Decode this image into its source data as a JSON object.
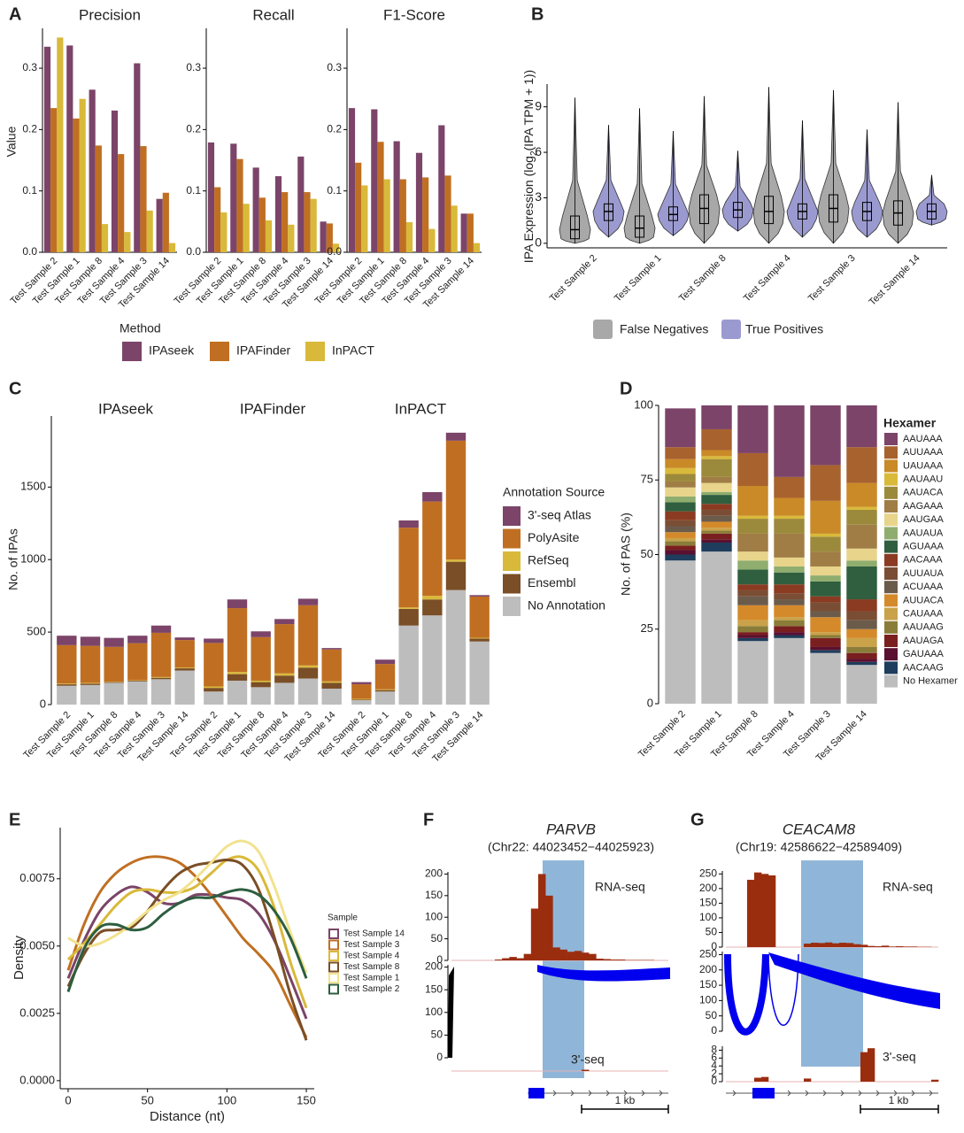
{
  "chart_data": [
    {
      "panel": "A",
      "type": "grouped-bar",
      "ylabel": "Value",
      "legend_title": "Method",
      "categories": [
        "Test Sample 2",
        "Test Sample 1",
        "Test Sample 8",
        "Test Sample 4",
        "Test Sample 3",
        "Test Sample 14"
      ],
      "series": [
        {
          "name": "IPAseek",
          "color": "#7b4468"
        },
        {
          "name": "IPAFinder",
          "color": "#c06f22"
        },
        {
          "name": "InPACT",
          "color": "#d9b93a"
        }
      ],
      "facets": [
        {
          "title": "Precision",
          "values": [
            [
              0.335,
              0.337,
              0.265,
              0.231,
              0.308,
              0.087
            ],
            [
              0.235,
              0.218,
              0.174,
              0.16,
              0.173,
              0.097
            ],
            [
              0.35,
              0.25,
              0.046,
              0.033,
              0.068,
              0.015
            ]
          ]
        },
        {
          "title": "Recall",
          "values": [
            [
              0.179,
              0.177,
              0.138,
              0.124,
              0.156,
              0.05
            ],
            [
              0.106,
              0.152,
              0.089,
              0.098,
              0.098,
              0.047
            ],
            [
              0.065,
              0.079,
              0.052,
              0.045,
              0.087,
              0.014
            ]
          ]
        },
        {
          "title": "F1-Score",
          "values": [
            [
              0.235,
              0.233,
              0.181,
              0.162,
              0.207,
              0.063
            ],
            [
              0.146,
              0.18,
              0.119,
              0.122,
              0.125,
              0.063
            ],
            [
              0.109,
              0.119,
              0.049,
              0.038,
              0.076,
              0.015
            ]
          ]
        }
      ],
      "ylim": [
        0,
        0.365
      ],
      "yticks": [
        {
          "value": 0,
          "label": "0.0"
        },
        0.1,
        0.2,
        0.3
      ]
    },
    {
      "panel": "B",
      "type": "violin",
      "ylabel_parts": [
        "IPA Expression (log",
        "2",
        "(IPA TPM + 1))"
      ],
      "categories": [
        "Test Sample 2",
        "Test Sample 1",
        "Test Sample 8",
        "Test Sample 4",
        "Test Sample 3",
        "Test Sample 14"
      ],
      "series": [
        {
          "name": "False Negatives",
          "color": "#a8a8a8",
          "min": [
            0,
            0,
            0,
            0,
            0,
            0
          ],
          "q1": [
            0.3,
            0.4,
            1.3,
            1.3,
            1.4,
            1.2
          ],
          "median": [
            0.9,
            1.0,
            2.3,
            2.1,
            2.3,
            2.0
          ],
          "q3": [
            1.8,
            1.8,
            3.2,
            3.1,
            3.2,
            2.8
          ],
          "max": [
            9.6,
            8.9,
            9.7,
            10.3,
            10.1,
            9.3
          ]
        },
        {
          "name": "True Positives",
          "color": "#9b9ad0",
          "min": [
            0.4,
            0.5,
            0.8,
            0.4,
            0.4,
            1.2
          ],
          "q1": [
            1.5,
            1.5,
            1.7,
            1.6,
            1.5,
            1.6
          ],
          "median": [
            2.1,
            1.9,
            2.2,
            2.1,
            2.1,
            2.1
          ],
          "q3": [
            2.6,
            2.4,
            2.7,
            2.6,
            2.7,
            2.6
          ],
          "max": [
            7.8,
            7.4,
            6.1,
            8.1,
            7.5,
            4.5
          ]
        }
      ],
      "ylim": [
        -0.3,
        10.5
      ],
      "yticks": [
        0,
        3,
        6,
        9
      ]
    },
    {
      "panel": "C",
      "type": "stacked-bar",
      "ylabel": "No. of IPAs",
      "legend_title": "Annotation Source",
      "categories": [
        "Test Sample 2",
        "Test Sample 1",
        "Test Sample 8",
        "Test Sample 4",
        "Test Sample 3",
        "Test Sample 14"
      ],
      "series": [
        {
          "name": "3'-seq Atlas",
          "color": "#7b4468"
        },
        {
          "name": "PolyAsite",
          "color": "#c06f22"
        },
        {
          "name": "RefSeq",
          "color": "#d9b93a"
        },
        {
          "name": "Ensembl",
          "color": "#7a4e26"
        },
        {
          "name": "No Annotation",
          "color": "#bdbdbd"
        }
      ],
      "facets": [
        {
          "title": "IPAseek",
          "values": [
            [
              65,
              63,
              62,
              52,
              50,
              18
            ],
            [
              265,
              255,
              240,
              255,
              305,
              190
            ],
            [
              5,
              5,
              3,
              3,
              5,
              5
            ],
            [
              10,
              10,
              5,
              5,
              10,
              15
            ],
            [
              130,
              135,
              150,
              160,
              175,
              235
            ]
          ]
        },
        {
          "title": "IPAFinder",
          "values": [
            [
              30,
              60,
              40,
              35,
              45,
              10
            ],
            [
              300,
              440,
              300,
              340,
              415,
              220
            ],
            [
              10,
              15,
              10,
              15,
              15,
              10
            ],
            [
              25,
              45,
              35,
              50,
              75,
              40
            ],
            [
              90,
              165,
              120,
              150,
              180,
              110
            ]
          ]
        },
        {
          "title": "InPACT",
          "values": [
            [
              15,
              30,
              50,
              65,
              55,
              10
            ],
            [
              100,
              175,
              550,
              650,
              820,
              285
            ],
            [
              5,
              5,
              10,
              25,
              15,
              5
            ],
            [
              5,
              10,
              115,
              110,
              195,
              20
            ],
            [
              30,
              90,
              545,
              615,
              790,
              435
            ]
          ]
        }
      ],
      "ylim": [
        0,
        1990
      ],
      "yticks": [
        0,
        500,
        1000,
        1500
      ]
    },
    {
      "panel": "D",
      "type": "stacked-bar",
      "ylabel": "No. of PAS (%)",
      "legend_title": "Hexamer",
      "categories": [
        "Test Sample 2",
        "Test Sample 1",
        "Test Sample 8",
        "Test Sample 4",
        "Test Sample 3",
        "Test Sample 14"
      ],
      "series": [
        {
          "name": "AAUAAA",
          "color": "#7b4468",
          "values": [
            13,
            8,
            16,
            24,
            20,
            14
          ]
        },
        {
          "name": "AUUAAA",
          "color": "#a8622e",
          "values": [
            4,
            7,
            11,
            7,
            12,
            12
          ]
        },
        {
          "name": "UAUAAA",
          "color": "#c98a27",
          "values": [
            3,
            2,
            10,
            6,
            11,
            8
          ]
        },
        {
          "name": "AAUAAU",
          "color": "#d9b93a",
          "values": [
            2,
            1,
            1,
            1,
            1,
            1
          ]
        },
        {
          "name": "AAUACA",
          "color": "#9c8a3c",
          "values": [
            2.5,
            6,
            5,
            5,
            5,
            5
          ]
        },
        {
          "name": "AAGAAA",
          "color": "#a07d45",
          "values": [
            2,
            2,
            6,
            8,
            5,
            8
          ]
        },
        {
          "name": "AAUGAA",
          "color": "#e8d48a",
          "values": [
            3,
            3,
            3,
            3,
            3,
            4
          ]
        },
        {
          "name": "AAUAUA",
          "color": "#8fad6e",
          "values": [
            2,
            1,
            3,
            2,
            2,
            2
          ]
        },
        {
          "name": "AGUAAA",
          "color": "#2f5f3e",
          "values": [
            3,
            3,
            5,
            4,
            5,
            11
          ]
        },
        {
          "name": "AACAAA",
          "color": "#8a3b22",
          "values": [
            3,
            2,
            2,
            3,
            2,
            4
          ]
        },
        {
          "name": "AUUAUA",
          "color": "#7a4e34",
          "values": [
            2,
            2,
            2,
            2,
            3,
            3
          ]
        },
        {
          "name": "ACUAAA",
          "color": "#6b5b4b",
          "values": [
            2,
            2,
            3,
            2,
            2,
            3
          ]
        },
        {
          "name": "AUUACA",
          "color": "#d48a2a",
          "values": [
            2,
            2,
            5,
            4,
            5,
            3
          ]
        },
        {
          "name": "CAUAAA",
          "color": "#c9a24a",
          "values": [
            1,
            1,
            2,
            1,
            1,
            3
          ]
        },
        {
          "name": "AAUAAG",
          "color": "#8a7d3a",
          "values": [
            1.5,
            1,
            2,
            2,
            1,
            2
          ]
        },
        {
          "name": "AAUAGA",
          "color": "#7a1f1f",
          "values": [
            1.5,
            2,
            1,
            2,
            3,
            2
          ]
        },
        {
          "name": "GAUAAA",
          "color": "#5a1030",
          "values": [
            1.5,
            1,
            1,
            1,
            1,
            1
          ]
        },
        {
          "name": "AACAAG",
          "color": "#1f3d5c",
          "values": [
            2,
            3,
            1,
            1,
            1,
            1
          ]
        },
        {
          "name": "No Hexamer",
          "color": "#bdbdbd",
          "values": [
            48,
            51,
            21,
            22,
            17,
            13
          ]
        }
      ],
      "ylim": [
        0,
        100
      ],
      "yticks": [
        0,
        25,
        50,
        75,
        100
      ]
    },
    {
      "panel": "E",
      "type": "line",
      "xlabel": "Distance (nt)",
      "ylabel": "Density",
      "legend_title": "Sample",
      "x": [
        0,
        10,
        20,
        30,
        40,
        50,
        60,
        70,
        80,
        90,
        100,
        110,
        120,
        130,
        140,
        150
      ],
      "series": [
        {
          "name": "Test Sample 14",
          "color": "#7b4468",
          "values": [
            0.0038,
            0.0052,
            0.0063,
            0.0069,
            0.0072,
            0.007,
            0.0066,
            0.0066,
            0.0069,
            0.0069,
            0.0068,
            0.0067,
            0.0062,
            0.0052,
            0.0038,
            0.0023
          ]
        },
        {
          "name": "Test Sample 3",
          "color": "#c06f22",
          "values": [
            0.0041,
            0.0058,
            0.007,
            0.0077,
            0.0081,
            0.0083,
            0.0083,
            0.0081,
            0.0076,
            0.0069,
            0.0061,
            0.0053,
            0.0047,
            0.004,
            0.0028,
            0.0016
          ]
        },
        {
          "name": "Test Sample 4",
          "color": "#d9b93a",
          "values": [
            0.0045,
            0.0051,
            0.0058,
            0.0065,
            0.007,
            0.0071,
            0.007,
            0.007,
            0.0072,
            0.0077,
            0.0082,
            0.0083,
            0.0078,
            0.0064,
            0.0044,
            0.0027
          ]
        },
        {
          "name": "Test Sample 8",
          "color": "#7a4e26",
          "values": [
            0.0035,
            0.0047,
            0.0055,
            0.0056,
            0.0057,
            0.0063,
            0.0071,
            0.0077,
            0.008,
            0.0081,
            0.0082,
            0.008,
            0.0071,
            0.0053,
            0.0032,
            0.0015
          ]
        },
        {
          "name": "Test Sample 1",
          "color": "#f2e28e",
          "values": [
            0.0053,
            0.005,
            0.0051,
            0.0054,
            0.0058,
            0.0063,
            0.0067,
            0.007,
            0.0075,
            0.0081,
            0.0087,
            0.0089,
            0.0085,
            0.0072,
            0.0055,
            0.004
          ]
        },
        {
          "name": "Test Sample 2",
          "color": "#2c5e3f",
          "values": [
            0.0033,
            0.0049,
            0.0057,
            0.0058,
            0.0056,
            0.0057,
            0.0062,
            0.0066,
            0.0068,
            0.0068,
            0.007,
            0.0071,
            0.0069,
            0.0063,
            0.0053,
            0.0038
          ]
        }
      ],
      "xlim": [
        -5,
        155
      ],
      "xticks": [
        0,
        50,
        100,
        150
      ],
      "ylim": [
        -0.0003,
        0.0094
      ],
      "yticks": [
        {
          "value": 0,
          "label": "0.0000"
        },
        0.0025,
        {
          "value": 0.005,
          "label": "0.0050"
        },
        0.0075
      ]
    },
    {
      "panel": "F",
      "type": "track",
      "title": "PARVB",
      "subtitle": "(Chr22: 44023452−44025923)",
      "scale_label": "1 kb",
      "tracks": [
        {
          "label": "RNA-seq",
          "color": "#9b2d0f",
          "ylim": [
            0,
            205
          ],
          "yticks": [
            0,
            50,
            100,
            150,
            200
          ],
          "values": [
            0,
            0,
            0,
            0,
            0,
            0,
            2,
            5,
            8,
            5,
            15,
            120,
            200,
            150,
            30,
            25,
            20,
            22,
            18,
            15,
            4,
            3,
            2,
            2,
            1,
            1,
            1,
            1,
            0,
            0
          ]
        },
        {
          "ylim": [
            0,
            205
          ],
          "yticks": [
            0,
            50,
            100,
            150,
            200
          ]
        },
        {
          "label": "3'-seq",
          "color": "#9b2d0f",
          "ylim": [
            0,
            10
          ],
          "values": [
            0,
            0,
            0,
            0,
            0,
            0,
            0,
            0,
            0,
            0,
            0,
            0,
            0,
            0,
            0,
            0,
            0,
            0,
            1,
            0,
            0,
            0,
            0,
            0,
            0,
            0,
            0,
            0,
            0,
            0
          ]
        }
      ]
    },
    {
      "panel": "G",
      "type": "track",
      "title": "CEACAM8",
      "subtitle": "(Chr19: 42586622−42589409)",
      "scale_label": "1 kb",
      "tracks": [
        {
          "label": "RNA-seq",
          "color": "#9b2d0f",
          "ylim": [
            0,
            260
          ],
          "yticks": [
            0,
            50,
            100,
            150,
            200,
            250
          ],
          "values": [
            0,
            0,
            0,
            230,
            255,
            250,
            245,
            0,
            0,
            0,
            0,
            12,
            15,
            14,
            16,
            13,
            15,
            14,
            10,
            8,
            4,
            3,
            5,
            2,
            3,
            2,
            2,
            1,
            1,
            0
          ]
        },
        {
          "ylim": [
            0,
            260
          ],
          "yticks": [
            0,
            50,
            100,
            150,
            200,
            250
          ]
        },
        {
          "label": "3'-seq",
          "color": "#9b2d0f",
          "ylim": [
            0,
            9
          ],
          "yticks": [
            0,
            2,
            4,
            6,
            8
          ],
          "values": [
            0,
            0,
            0,
            0,
            1,
            1.2,
            0,
            0,
            0,
            0,
            0,
            0.8,
            0,
            0,
            0,
            0,
            0,
            0,
            0,
            7.5,
            8.5,
            0,
            0,
            0,
            0,
            0,
            0,
            0,
            0,
            0.5
          ]
        }
      ]
    }
  ]
}
